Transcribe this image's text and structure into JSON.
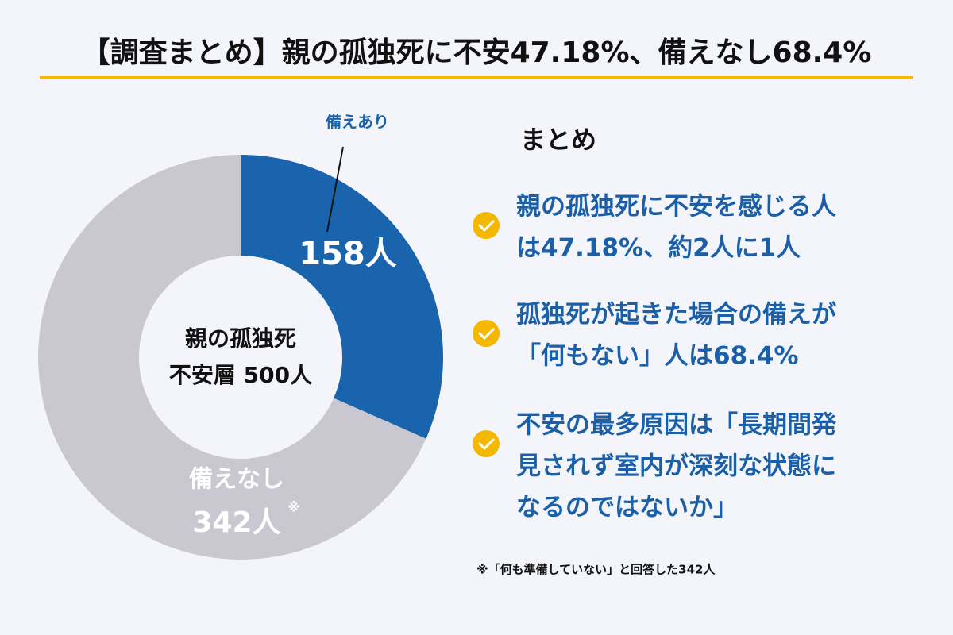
{
  "chart_data": {
    "type": "pie",
    "donut": true,
    "title": "【調査まとめ】親の孤独死に不安47.18%、備えなし68.4%",
    "categories": [
      "備えあり",
      "備えなし"
    ],
    "values": [
      158,
      342
    ],
    "value_labels": [
      "158人",
      "342人"
    ],
    "value_label_note": "※",
    "colors": [
      "#1a64ad",
      "#c9c8d0"
    ],
    "center_label": [
      "親の孤独死",
      "不安層 500人"
    ]
  },
  "summary": {
    "heading": "まとめ",
    "items": [
      [
        " 親の孤独死に不安を感じる人",
        "は47.18%、約2人に1人"
      ],
      [
        "孤独死が起きた場合の備えが",
        "「何もない」人は68.4%"
      ],
      [
        "不安の最多原因は「長期間発",
        "見されず室内が深刻な状態に",
        "なるのではないか」"
      ]
    ],
    "footnote": "※「何も準備していない」と回答した342人"
  }
}
